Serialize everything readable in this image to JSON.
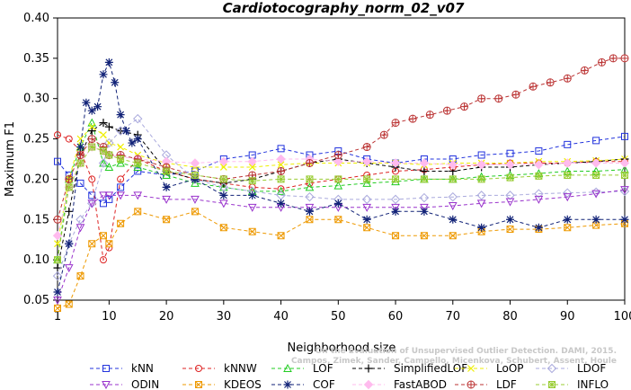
{
  "chart_data": {
    "type": "line",
    "title": "Cardiotocography_norm_02_v07",
    "xlabel": "Neighborhood size",
    "ylabel": "Maximum F1",
    "xlim": [
      1,
      100
    ],
    "ylim": [
      0.05,
      0.4
    ],
    "xticks": [
      1,
      10,
      20,
      30,
      40,
      50,
      60,
      70,
      80,
      90,
      100
    ],
    "yticks": [
      0.05,
      0.1,
      0.15,
      0.2,
      0.25,
      0.3,
      0.35,
      0.4
    ],
    "ytick_labels": [
      "0.05",
      "0.10",
      "0.15",
      "0.20",
      "0.25",
      "0.30",
      "0.35",
      "0.40"
    ],
    "grid": false,
    "legend_position": "bottom",
    "watermark": [
      "Campos, Zimek, Sander, Campello, Micenkova, Schubert, Assent, Houle",
      "On the Evaluation of Unsupervised Outlier Detection. DAMI, 2015."
    ],
    "series": [
      {
        "name": "kNN",
        "color": "#2233dd",
        "marker": "square",
        "x": [
          1,
          3,
          5,
          7,
          9,
          10,
          12,
          15,
          20,
          25,
          30,
          35,
          40,
          45,
          50,
          55,
          60,
          65,
          70,
          75,
          80,
          85,
          90,
          95,
          100
        ],
        "y": [
          0.222,
          0.205,
          0.195,
          0.18,
          0.17,
          0.175,
          0.19,
          0.21,
          0.205,
          0.21,
          0.225,
          0.23,
          0.238,
          0.23,
          0.235,
          0.225,
          0.22,
          0.225,
          0.225,
          0.23,
          0.232,
          0.235,
          0.243,
          0.248,
          0.253
        ]
      },
      {
        "name": "kNNW",
        "color": "#dd2222",
        "marker": "circle",
        "x": [
          1,
          3,
          5,
          7,
          9,
          10,
          12,
          15,
          20,
          25,
          30,
          35,
          40,
          45,
          50,
          55,
          60,
          65,
          70,
          75,
          80,
          85,
          90,
          95,
          100
        ],
        "y": [
          0.255,
          0.25,
          0.235,
          0.2,
          0.1,
          0.115,
          0.2,
          0.225,
          0.21,
          0.2,
          0.195,
          0.19,
          0.188,
          0.195,
          0.2,
          0.205,
          0.21,
          0.212,
          0.215,
          0.218,
          0.22,
          0.22,
          0.22,
          0.222,
          0.222
        ]
      },
      {
        "name": "LOF",
        "color": "#22cc22",
        "marker": "triangle-up",
        "x": [
          1,
          3,
          5,
          7,
          9,
          10,
          12,
          15,
          20,
          25,
          30,
          35,
          40,
          45,
          50,
          55,
          60,
          65,
          70,
          75,
          80,
          85,
          90,
          95,
          100
        ],
        "y": [
          0.1,
          0.2,
          0.24,
          0.27,
          0.22,
          0.215,
          0.22,
          0.215,
          0.205,
          0.195,
          0.19,
          0.185,
          0.185,
          0.19,
          0.192,
          0.195,
          0.197,
          0.2,
          0.2,
          0.203,
          0.205,
          0.207,
          0.21,
          0.21,
          0.212
        ]
      },
      {
        "name": "SimplifiedLOF",
        "color": "#000000",
        "marker": "plus",
        "x": [
          1,
          3,
          5,
          7,
          9,
          10,
          12,
          15,
          20,
          25,
          30,
          35,
          40,
          45,
          50,
          55,
          60,
          65,
          70,
          75,
          80,
          85,
          90,
          95,
          100
        ],
        "y": [
          0.09,
          0.16,
          0.23,
          0.26,
          0.27,
          0.265,
          0.26,
          0.255,
          0.21,
          0.2,
          0.195,
          0.2,
          0.21,
          0.22,
          0.225,
          0.22,
          0.215,
          0.21,
          0.21,
          0.215,
          0.215,
          0.218,
          0.22,
          0.222,
          0.225
        ]
      },
      {
        "name": "LoOP",
        "color": "#eeee00",
        "marker": "x",
        "x": [
          1,
          3,
          5,
          7,
          9,
          10,
          12,
          15,
          20,
          25,
          30,
          35,
          40,
          45,
          50,
          55,
          60,
          65,
          70,
          75,
          80,
          85,
          90,
          95,
          100
        ],
        "y": [
          0.12,
          0.2,
          0.25,
          0.265,
          0.255,
          0.245,
          0.24,
          0.23,
          0.22,
          0.215,
          0.215,
          0.215,
          0.218,
          0.22,
          0.22,
          0.22,
          0.22,
          0.218,
          0.22,
          0.22,
          0.22,
          0.222,
          0.222,
          0.223,
          0.225
        ]
      },
      {
        "name": "LDOF",
        "color": "#aaaadd",
        "marker": "diamond",
        "x": [
          1,
          3,
          5,
          7,
          9,
          10,
          12,
          15,
          20,
          25,
          30,
          35,
          40,
          45,
          50,
          55,
          60,
          65,
          70,
          75,
          80,
          85,
          90,
          95,
          100
        ],
        "y": [
          0.08,
          0.12,
          0.15,
          0.17,
          0.22,
          0.245,
          0.26,
          0.275,
          0.23,
          0.2,
          0.19,
          0.185,
          0.18,
          0.178,
          0.175,
          0.175,
          0.175,
          0.177,
          0.178,
          0.18,
          0.18,
          0.182,
          0.183,
          0.184,
          0.185
        ]
      },
      {
        "name": "ODIN",
        "color": "#9933cc",
        "marker": "triangle-down",
        "x": [
          1,
          3,
          5,
          7,
          9,
          10,
          12,
          15,
          20,
          25,
          30,
          35,
          40,
          45,
          50,
          55,
          60,
          65,
          70,
          75,
          80,
          85,
          90,
          95,
          100
        ],
        "y": [
          0.05,
          0.09,
          0.14,
          0.17,
          0.18,
          0.18,
          0.18,
          0.18,
          0.175,
          0.175,
          0.17,
          0.165,
          0.165,
          0.165,
          0.165,
          0.165,
          0.165,
          0.165,
          0.167,
          0.17,
          0.172,
          0.175,
          0.178,
          0.182,
          0.187
        ]
      },
      {
        "name": "KDEOS",
        "color": "#ee9900",
        "marker": "square-x",
        "x": [
          1,
          3,
          5,
          7,
          9,
          10,
          12,
          15,
          20,
          25,
          30,
          35,
          40,
          45,
          50,
          55,
          60,
          65,
          70,
          75,
          80,
          85,
          90,
          95,
          100
        ],
        "y": [
          0.04,
          0.045,
          0.08,
          0.12,
          0.13,
          0.12,
          0.145,
          0.16,
          0.15,
          0.16,
          0.14,
          0.135,
          0.13,
          0.15,
          0.15,
          0.14,
          0.13,
          0.13,
          0.13,
          0.135,
          0.138,
          0.138,
          0.14,
          0.143,
          0.145
        ]
      },
      {
        "name": "COF",
        "color": "#112277",
        "marker": "star",
        "x": [
          1,
          3,
          5,
          6,
          7,
          8,
          9,
          10,
          11,
          12,
          13,
          14,
          15,
          20,
          25,
          30,
          35,
          40,
          45,
          50,
          55,
          60,
          65,
          70,
          75,
          80,
          85,
          90,
          95,
          100
        ],
        "y": [
          0.06,
          0.12,
          0.24,
          0.295,
          0.285,
          0.29,
          0.33,
          0.345,
          0.32,
          0.28,
          0.26,
          0.245,
          0.25,
          0.19,
          0.2,
          0.18,
          0.18,
          0.17,
          0.16,
          0.17,
          0.15,
          0.16,
          0.16,
          0.15,
          0.14,
          0.15,
          0.14,
          0.15,
          0.15,
          0.15
        ]
      },
      {
        "name": "FastABOD",
        "color": "#ffbbee",
        "marker": "diamond-filled",
        "x": [
          1,
          3,
          5,
          7,
          9,
          10,
          12,
          15,
          20,
          25,
          30,
          35,
          40,
          45,
          50,
          55,
          60,
          65,
          70,
          75,
          80,
          85,
          90,
          95,
          100
        ],
        "y": [
          0.13,
          0.19,
          0.22,
          0.24,
          0.235,
          0.23,
          0.228,
          0.225,
          0.222,
          0.22,
          0.222,
          0.222,
          0.225,
          0.225,
          0.222,
          0.222,
          0.22,
          0.22,
          0.218,
          0.218,
          0.218,
          0.218,
          0.22,
          0.22,
          0.22
        ]
      },
      {
        "name": "LDF",
        "color": "#bb3333",
        "marker": "circle-plus",
        "x": [
          1,
          3,
          5,
          7,
          9,
          10,
          12,
          15,
          20,
          25,
          30,
          35,
          40,
          45,
          50,
          55,
          58,
          60,
          63,
          66,
          69,
          72,
          75,
          78,
          81,
          84,
          87,
          90,
          93,
          96,
          98,
          100
        ],
        "y": [
          0.15,
          0.2,
          0.23,
          0.25,
          0.24,
          0.23,
          0.23,
          0.225,
          0.215,
          0.205,
          0.2,
          0.205,
          0.21,
          0.22,
          0.23,
          0.24,
          0.255,
          0.27,
          0.275,
          0.28,
          0.285,
          0.29,
          0.3,
          0.3,
          0.305,
          0.315,
          0.32,
          0.325,
          0.335,
          0.345,
          0.35,
          0.35
        ]
      },
      {
        "name": "INFLO",
        "color": "#99cc33",
        "marker": "asterisk-box",
        "x": [
          1,
          3,
          5,
          7,
          9,
          10,
          12,
          15,
          20,
          25,
          30,
          35,
          40,
          45,
          50,
          55,
          60,
          65,
          70,
          75,
          80,
          85,
          90,
          95,
          100
        ],
        "y": [
          0.1,
          0.19,
          0.22,
          0.24,
          0.235,
          0.23,
          0.225,
          0.22,
          0.21,
          0.205,
          0.2,
          0.198,
          0.2,
          0.2,
          0.2,
          0.2,
          0.2,
          0.2,
          0.2,
          0.2,
          0.202,
          0.204,
          0.205,
          0.205,
          0.205
        ]
      }
    ]
  }
}
